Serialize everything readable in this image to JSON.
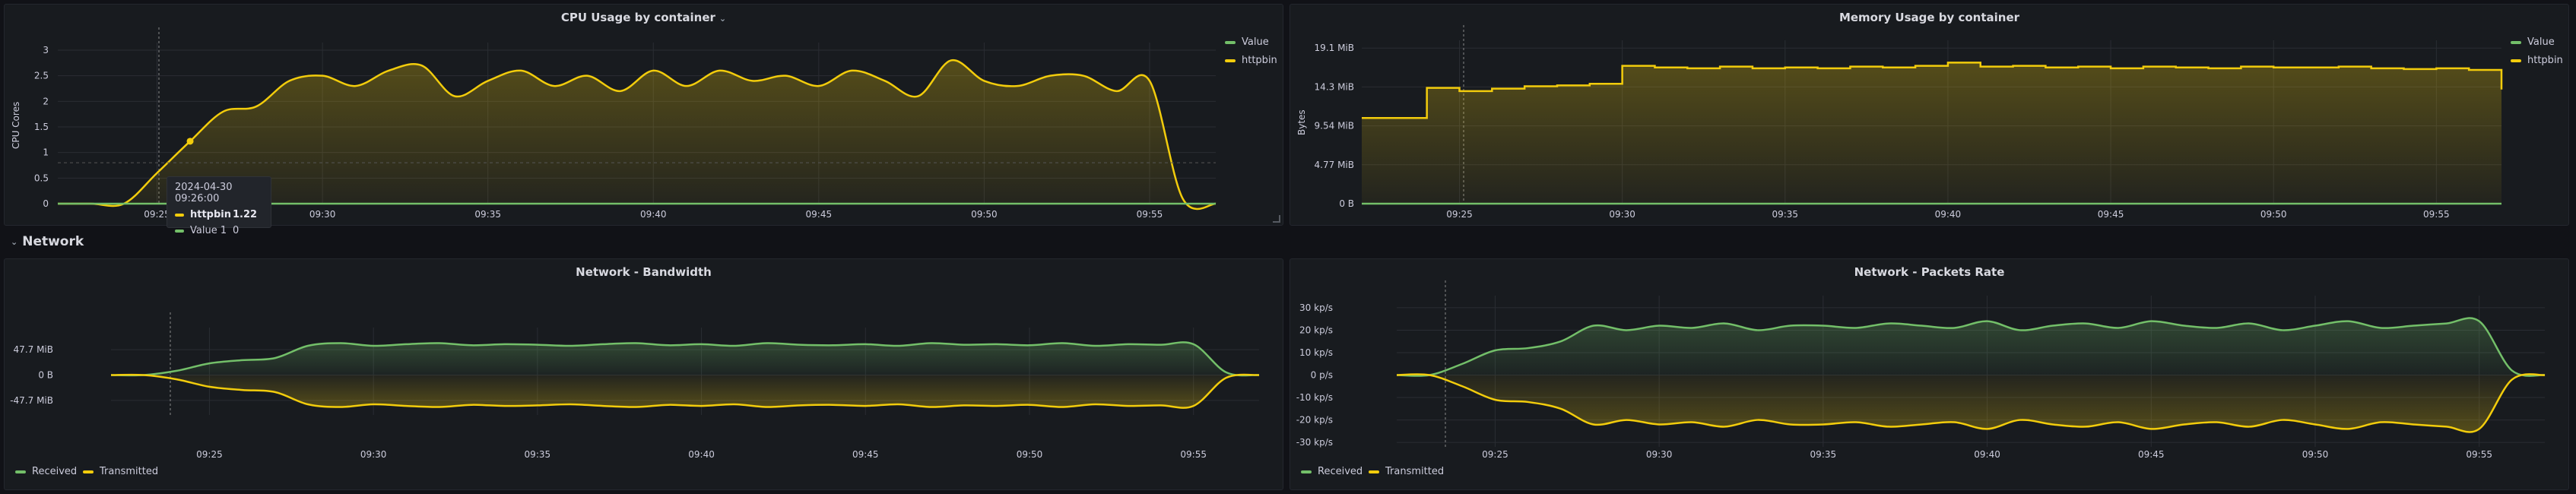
{
  "colors": {
    "httpbin": "#f2cc0c",
    "value": "#73bf69",
    "received": "#73bf69",
    "transmitted": "#f2cc0c"
  },
  "cpu": {
    "title": "CPU Usage by container",
    "ylabel": "CPU Cores",
    "legend": [
      {
        "name": "Value",
        "color": "#73bf69"
      },
      {
        "name": "httpbin",
        "color": "#f2cc0c"
      }
    ],
    "tooltip": {
      "time": "2024-04-30 09:26:00",
      "rows": [
        {
          "name": "httpbin",
          "value": "1.22",
          "color": "#f2cc0c"
        },
        {
          "name": "Value 1",
          "value": "0",
          "color": "#73bf69"
        }
      ]
    }
  },
  "memory": {
    "title": "Memory Usage by container",
    "ylabel": "Bytes",
    "legend": [
      {
        "name": "Value",
        "color": "#73bf69"
      },
      {
        "name": "httpbin",
        "color": "#f2cc0c"
      }
    ]
  },
  "network_row": {
    "label": "Network"
  },
  "bandwidth": {
    "title": "Network - Bandwidth",
    "legend": [
      {
        "name": "Received",
        "color": "#73bf69"
      },
      {
        "name": "Transmitted",
        "color": "#f2cc0c"
      }
    ]
  },
  "packets": {
    "title": "Network - Packets Rate",
    "legend": [
      {
        "name": "Received",
        "color": "#73bf69"
      },
      {
        "name": "Transmitted",
        "color": "#f2cc0c"
      }
    ]
  },
  "chart_data": [
    {
      "id": "cpu",
      "type": "area",
      "title": "CPU Usage by container",
      "xlabel": "",
      "ylabel": "CPU Cores",
      "x": [
        "09:22",
        "09:23",
        "09:24",
        "09:25",
        "09:26",
        "09:27",
        "09:28",
        "09:29",
        "09:30",
        "09:31",
        "09:32",
        "09:33",
        "09:34",
        "09:35",
        "09:36",
        "09:37",
        "09:38",
        "09:39",
        "09:40",
        "09:41",
        "09:42",
        "09:43",
        "09:44",
        "09:45",
        "09:46",
        "09:47",
        "09:48",
        "09:49",
        "09:50",
        "09:51",
        "09:52",
        "09:53",
        "09:54",
        "09:55",
        "09:56",
        "09:57"
      ],
      "series": [
        {
          "name": "httpbin",
          "values": [
            0,
            0,
            0,
            0.6,
            1.22,
            1.8,
            1.9,
            2.4,
            2.5,
            2.3,
            2.6,
            2.7,
            2.1,
            2.4,
            2.6,
            2.3,
            2.5,
            2.2,
            2.6,
            2.3,
            2.6,
            2.4,
            2.5,
            2.3,
            2.6,
            2.4,
            2.1,
            2.8,
            2.4,
            2.3,
            2.5,
            2.5,
            2.2,
            2.4,
            0.1,
            0
          ]
        },
        {
          "name": "Value",
          "values": [
            0,
            0,
            0,
            0,
            0,
            0,
            0,
            0,
            0,
            0,
            0,
            0,
            0,
            0,
            0,
            0,
            0,
            0,
            0,
            0,
            0,
            0,
            0,
            0,
            0,
            0,
            0,
            0,
            0,
            0,
            0,
            0,
            0,
            0,
            0,
            0
          ]
        }
      ],
      "ylim": [
        0,
        3
      ],
      "y_ticks": [
        "0",
        "0.5",
        "1",
        "1.5",
        "2",
        "2.5",
        "3"
      ],
      "x_ticks": [
        "09:25",
        "09:30",
        "09:35",
        "09:40",
        "09:45",
        "09:50",
        "09:55"
      ],
      "grid": true,
      "legend_position": "top-right"
    },
    {
      "id": "memory",
      "type": "area",
      "title": "Memory Usage by container",
      "xlabel": "",
      "ylabel": "Bytes",
      "x": [
        "09:22",
        "09:23",
        "09:24",
        "09:25",
        "09:26",
        "09:27",
        "09:28",
        "09:29",
        "09:30",
        "09:31",
        "09:32",
        "09:33",
        "09:34",
        "09:35",
        "09:36",
        "09:37",
        "09:38",
        "09:39",
        "09:40",
        "09:41",
        "09:42",
        "09:43",
        "09:44",
        "09:45",
        "09:46",
        "09:47",
        "09:48",
        "09:49",
        "09:50",
        "09:51",
        "09:52",
        "09:53",
        "09:54",
        "09:55",
        "09:56",
        "09:57"
      ],
      "series": [
        {
          "name": "httpbin",
          "values": [
            10.5,
            10.5,
            14.2,
            13.8,
            14.1,
            14.4,
            14.5,
            14.7,
            16.9,
            16.7,
            16.6,
            16.8,
            16.6,
            16.7,
            16.6,
            16.8,
            16.7,
            16.9,
            17.3,
            16.8,
            16.9,
            16.7,
            16.8,
            16.6,
            16.8,
            16.7,
            16.6,
            16.8,
            16.7,
            16.7,
            16.8,
            16.6,
            16.5,
            16.6,
            16.4,
            14.0
          ]
        },
        {
          "name": "Value",
          "values": [
            0,
            0,
            0,
            0,
            0,
            0,
            0,
            0,
            0,
            0,
            0,
            0,
            0,
            0,
            0,
            0,
            0,
            0,
            0,
            0,
            0,
            0,
            0,
            0,
            0,
            0,
            0,
            0,
            0,
            0,
            0,
            0,
            0,
            0,
            0,
            0
          ]
        }
      ],
      "ylim": [
        0,
        19.1
      ],
      "y_ticks": [
        "0 B",
        "4.77 MiB",
        "9.54 MiB",
        "14.3 MiB",
        "19.1 MiB"
      ],
      "x_ticks": [
        "09:25",
        "09:30",
        "09:35",
        "09:40",
        "09:45",
        "09:50",
        "09:55"
      ],
      "grid": true,
      "legend_position": "top-right"
    },
    {
      "id": "bandwidth",
      "type": "area",
      "title": "Network - Bandwidth",
      "xlabel": "",
      "ylabel": "",
      "x": [
        "09:22",
        "09:23",
        "09:24",
        "09:25",
        "09:26",
        "09:27",
        "09:28",
        "09:29",
        "09:30",
        "09:31",
        "09:32",
        "09:33",
        "09:34",
        "09:35",
        "09:36",
        "09:37",
        "09:38",
        "09:39",
        "09:40",
        "09:41",
        "09:42",
        "09:43",
        "09:44",
        "09:45",
        "09:46",
        "09:47",
        "09:48",
        "09:49",
        "09:50",
        "09:51",
        "09:52",
        "09:53",
        "09:54",
        "09:55",
        "09:56",
        "09:57"
      ],
      "series": [
        {
          "name": "Received",
          "values": [
            0,
            0,
            8,
            22,
            28,
            32,
            55,
            60,
            55,
            58,
            60,
            56,
            58,
            57,
            55,
            58,
            60,
            56,
            58,
            55,
            60,
            57,
            56,
            58,
            55,
            60,
            57,
            58,
            56,
            60,
            55,
            58,
            57,
            58,
            5,
            0
          ]
        },
        {
          "name": "Transmitted",
          "values": [
            0,
            0,
            -8,
            -22,
            -28,
            -32,
            -55,
            -60,
            -55,
            -58,
            -60,
            -56,
            -58,
            -57,
            -55,
            -58,
            -60,
            -56,
            -58,
            -55,
            -60,
            -57,
            -56,
            -58,
            -55,
            -60,
            -57,
            -58,
            -56,
            -60,
            -55,
            -58,
            -57,
            -58,
            -5,
            0
          ]
        }
      ],
      "ylim": [
        -75,
        75
      ],
      "y_ticks": [
        "-47.7 MiB",
        "0 B",
        "47.7 MiB"
      ],
      "x_ticks": [
        "09:25",
        "09:30",
        "09:35",
        "09:40",
        "09:45",
        "09:50",
        "09:55"
      ],
      "grid": true,
      "legend_position": "bottom-left"
    },
    {
      "id": "packets",
      "type": "area",
      "title": "Network - Packets Rate",
      "xlabel": "",
      "ylabel": "",
      "x": [
        "09:22",
        "09:23",
        "09:24",
        "09:25",
        "09:26",
        "09:27",
        "09:28",
        "09:29",
        "09:30",
        "09:31",
        "09:32",
        "09:33",
        "09:34",
        "09:35",
        "09:36",
        "09:37",
        "09:38",
        "09:39",
        "09:40",
        "09:41",
        "09:42",
        "09:43",
        "09:44",
        "09:45",
        "09:46",
        "09:47",
        "09:48",
        "09:49",
        "09:50",
        "09:51",
        "09:52",
        "09:53",
        "09:54",
        "09:55",
        "09:56",
        "09:57"
      ],
      "series": [
        {
          "name": "Received",
          "values": [
            0,
            0,
            5,
            11,
            12,
            15,
            22,
            20,
            22,
            21,
            23,
            20,
            22,
            22,
            21,
            23,
            22,
            21,
            24,
            20,
            22,
            23,
            21,
            24,
            22,
            21,
            23,
            20,
            22,
            24,
            21,
            22,
            23,
            24,
            2,
            0
          ]
        },
        {
          "name": "Transmitted",
          "values": [
            0,
            0,
            -5,
            -11,
            -12,
            -15,
            -22,
            -20,
            -22,
            -21,
            -23,
            -20,
            -22,
            -22,
            -21,
            -23,
            -22,
            -21,
            -24,
            -20,
            -22,
            -23,
            -21,
            -24,
            -22,
            -21,
            -23,
            -20,
            -22,
            -24,
            -21,
            -22,
            -23,
            -24,
            -2,
            0
          ]
        }
      ],
      "ylim": [
        -32,
        32
      ],
      "y_ticks": [
        "-30 kp/s",
        "-20 kp/s",
        "-10 kp/s",
        "0 p/s",
        "10 kp/s",
        "20 kp/s",
        "30 kp/s"
      ],
      "x_ticks": [
        "09:25",
        "09:30",
        "09:35",
        "09:40",
        "09:45",
        "09:50",
        "09:55"
      ],
      "grid": true,
      "legend_position": "bottom-left"
    }
  ]
}
